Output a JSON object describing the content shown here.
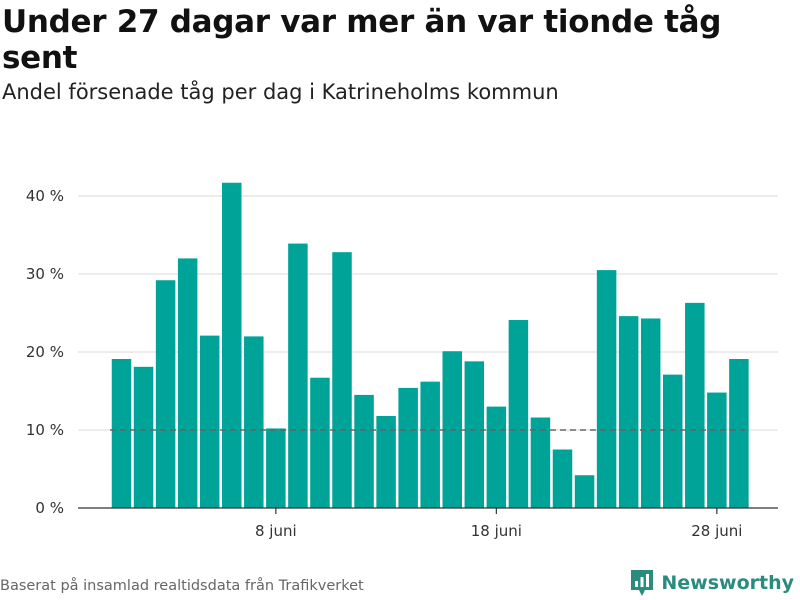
{
  "header": {
    "title": "Under 27 dagar var mer än var tionde tåg sent",
    "subtitle": "Andel försenade tåg per dag i Katrineholms kommun"
  },
  "footer": {
    "source": "Baserat på insamlad realtidsdata från Trafikverket",
    "brand": "Newsworthy",
    "brand_icon": "bar-chart-logo-icon"
  },
  "colors": {
    "bar": "#00a398",
    "grid": "#d9d9d9",
    "axis": "#333333",
    "reference_line": "#666666",
    "brand": "#2a8c7d"
  },
  "chart_data": {
    "type": "bar",
    "x": [
      "2024-06-01",
      "2024-06-02",
      "2024-06-03",
      "2024-06-04",
      "2024-06-05",
      "2024-06-06",
      "2024-06-07",
      "2024-06-08",
      "2024-06-09",
      "2024-06-10",
      "2024-06-11",
      "2024-06-12",
      "2024-06-13",
      "2024-06-14",
      "2024-06-15",
      "2024-06-16",
      "2024-06-17",
      "2024-06-18",
      "2024-06-19",
      "2024-06-20",
      "2024-06-21",
      "2024-06-22",
      "2024-06-23",
      "2024-06-24",
      "2024-06-25",
      "2024-06-26",
      "2024-06-27",
      "2024-06-28",
      "2024-06-29"
    ],
    "values": [
      19.1,
      18.1,
      29.2,
      32.0,
      22.1,
      41.7,
      22.0,
      10.2,
      33.9,
      16.7,
      32.8,
      14.5,
      11.8,
      15.4,
      16.2,
      20.1,
      18.8,
      13.0,
      24.1,
      11.6,
      7.5,
      4.2,
      30.5,
      24.6,
      24.3,
      17.1,
      26.3,
      14.8,
      19.1
    ],
    "reference_line": {
      "value": 10
    },
    "x_ticks": [
      {
        "x": "2024-06-08",
        "label": "8 juni"
      },
      {
        "x": "2024-06-18",
        "label": "18 juni"
      },
      {
        "x": "2024-06-28",
        "label": "28 juni"
      }
    ],
    "y_ticks": [
      {
        "value": 0,
        "label": "0 %"
      },
      {
        "value": 10,
        "label": "10 %"
      },
      {
        "value": 20,
        "label": "20 %"
      },
      {
        "value": 30,
        "label": "30 %"
      },
      {
        "value": 40,
        "label": "40 %"
      }
    ],
    "ylim": [
      0,
      42
    ],
    "xlabel": "",
    "ylabel": "",
    "grid": true
  }
}
